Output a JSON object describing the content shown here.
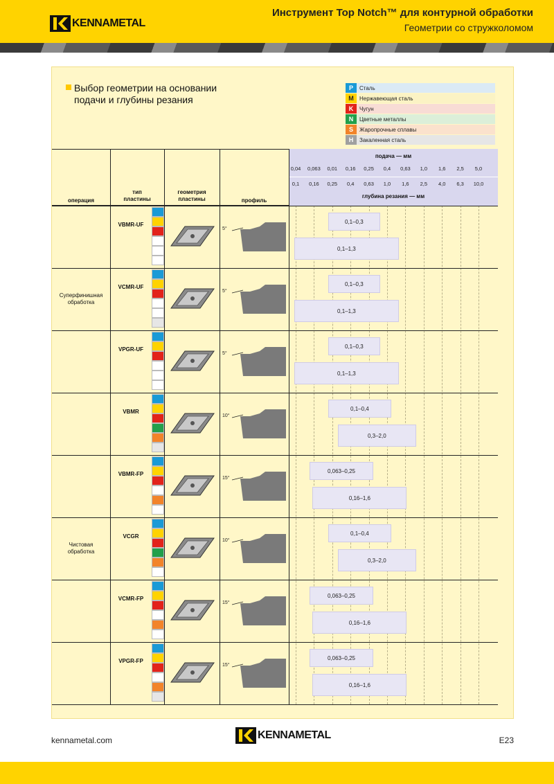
{
  "header": {
    "brand": "KENNAMETAL",
    "title": "Инструмент Top Notch™ для контурной обработки",
    "subtitle": "Геометрии со стружколомом"
  },
  "section": {
    "title_line1": "Выбор геометрии на основании",
    "title_line2": "подачи и глубины резания"
  },
  "legend": [
    {
      "code": "P",
      "label": "Сталь",
      "color": "#1a9ad6",
      "bg": "#dbeaf5"
    },
    {
      "code": "M",
      "label": "Нержавеющая сталь",
      "color": "#ffd300",
      "bg": "#fbf3c4"
    },
    {
      "code": "K",
      "label": "Чугун",
      "color": "#e2231a",
      "bg": "#f8dcd5"
    },
    {
      "code": "N",
      "label": "Цветные металлы",
      "color": "#22a04b",
      "bg": "#dcefd9"
    },
    {
      "code": "S",
      "label": "Жаропрочные сплавы",
      "color": "#f2842a",
      "bg": "#fbe2cd"
    },
    {
      "code": "H",
      "label": "Закаленная сталь",
      "color": "#a0a0a0",
      "bg": "#e6e6e6"
    }
  ],
  "table": {
    "col_operation": "операция",
    "col_type_1": "тип",
    "col_type_2": "пластины",
    "col_geom_1": "геометрия",
    "col_geom_2": "пластины",
    "col_profile": "профиль",
    "feed_label": "подача — мм",
    "depth_label": "глубина резания — мм",
    "feed_ticks": [
      "0,04",
      "0,063",
      "0,01",
      "0,16",
      "0,25",
      "0,4",
      "0,63",
      "1,0",
      "1,6",
      "2,5",
      "5,0"
    ],
    "depth_ticks": [
      "0,1",
      "0,16",
      "0,25",
      "0,4",
      "0,63",
      "1,0",
      "1,6",
      "2,5",
      "4,0",
      "6,3",
      "10,0"
    ]
  },
  "operations": [
    {
      "label_1": "Суперфинишная",
      "label_2": "обработка"
    },
    {
      "label_1": "Чистовая",
      "label_2": "обработка"
    }
  ],
  "rows": [
    {
      "type": "VBMR-UF",
      "angle": "5°",
      "chips": [
        "#1a9ad6",
        "#ffd300",
        "#e2231a",
        "#ffffff",
        "#ffffff",
        "#ffffff"
      ],
      "feed": "0,1–0,3",
      "depth": "0,1–1,3"
    },
    {
      "type": "VCMR-UF",
      "angle": "5°",
      "chips": [
        "#1a9ad6",
        "#ffd300",
        "#e2231a",
        "#ffffff",
        "#ffffff",
        "#e6e6e6"
      ],
      "feed": "0,1–0,3",
      "depth": "0,1–1,3"
    },
    {
      "type": "VPGR-UF",
      "angle": "5°",
      "chips": [
        "#1a9ad6",
        "#ffd300",
        "#e2231a",
        "#ffffff",
        "#ffffff",
        "#ffffff"
      ],
      "feed": "0,1–0,3",
      "depth": "0,1–1,3"
    },
    {
      "type": "VBMR",
      "angle": "10°",
      "chips": [
        "#1a9ad6",
        "#ffd300",
        "#e2231a",
        "#22a04b",
        "#f2842a",
        "#e6e6e6"
      ],
      "feed": "0,1–0,4",
      "depth": "0,3–2,0"
    },
    {
      "type": "VBMR-FP",
      "angle": "15°",
      "chips": [
        "#1a9ad6",
        "#ffd300",
        "#e2231a",
        "#ffffff",
        "#f2842a",
        "#ffffff"
      ],
      "feed": "0,063–0,25",
      "depth": "0,16–1,6"
    },
    {
      "type": "VCGR",
      "angle": "10°",
      "chips": [
        "#1a9ad6",
        "#ffd300",
        "#e2231a",
        "#22a04b",
        "#f2842a",
        "#ffffff"
      ],
      "feed": "0,1–0,4",
      "depth": "0,3–2,0"
    },
    {
      "type": "VCMR-FP",
      "angle": "15°",
      "chips": [
        "#1a9ad6",
        "#ffd300",
        "#e2231a",
        "#ffffff",
        "#f2842a",
        "#ffffff"
      ],
      "feed": "0,063–0,25",
      "depth": "0,16–1,6"
    },
    {
      "type": "VPGR-FP",
      "angle": "15°",
      "chips": [
        "#1a9ad6",
        "#ffd300",
        "#e2231a",
        "#ffffff",
        "#f2842a",
        "#e6e6e6"
      ],
      "feed": "0,063–0,25",
      "depth": "0,16–1,6"
    }
  ],
  "footer": {
    "site": "kennametal.com",
    "page": "E23"
  }
}
